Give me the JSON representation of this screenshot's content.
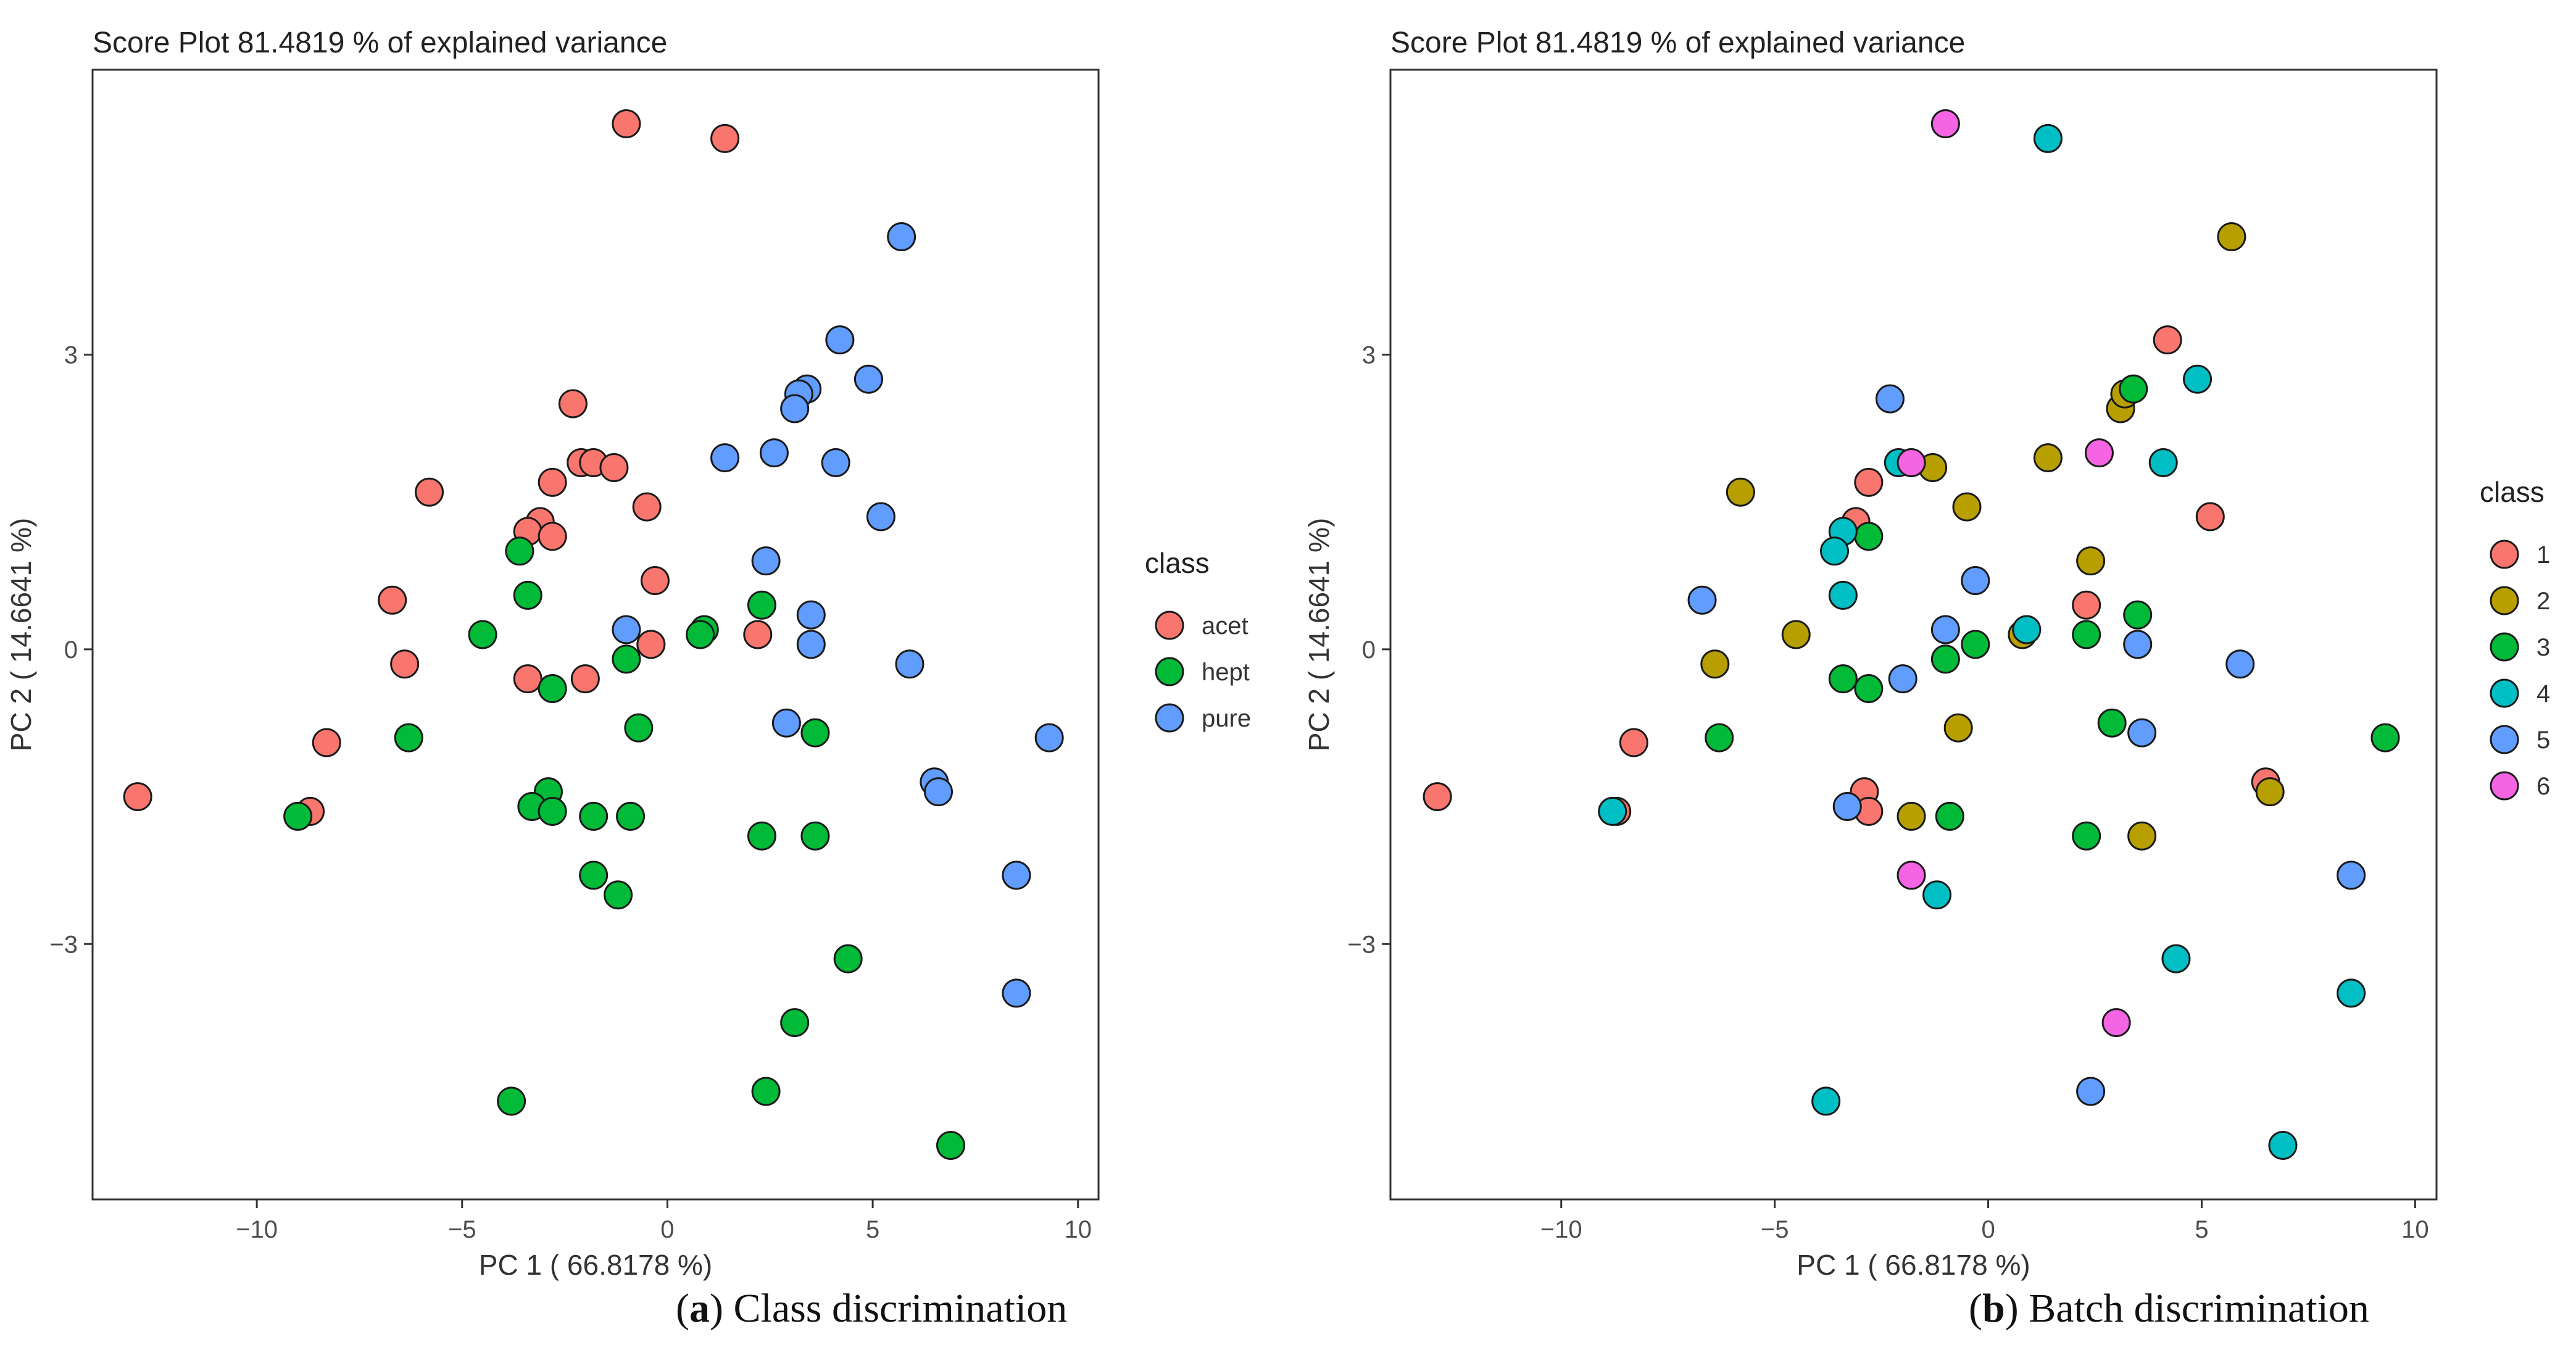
{
  "chart_data": [
    {
      "type": "scatter",
      "title": "Score Plot  81.4819 % of explained variance",
      "xlabel": "PC 1  ( 66.8178 %)",
      "ylabel": "PC 2  ( 14.6641 %)",
      "xlim": [
        -14,
        10.5
      ],
      "ylim": [
        -5.6,
        5.9
      ],
      "xticks": [
        -10,
        -5,
        0,
        5,
        10
      ],
      "xtick_labels": [
        "−10",
        "−5",
        "0",
        "5",
        "10"
      ],
      "yticks": [
        -3,
        0,
        3
      ],
      "ytick_labels": [
        "−3",
        "0",
        "3"
      ],
      "grid": false,
      "legend": {
        "title": "class",
        "position": "right"
      },
      "series": [
        {
          "name": "acet",
          "color": "#F8766D",
          "points": [
            [
              -1.0,
              5.35
            ],
            [
              1.4,
              5.2
            ],
            [
              -2.3,
              2.5
            ],
            [
              -2.1,
              1.9
            ],
            [
              -1.8,
              1.9
            ],
            [
              -1.3,
              1.85
            ],
            [
              -2.8,
              1.7
            ],
            [
              -5.8,
              1.6
            ],
            [
              -0.5,
              1.45
            ],
            [
              -3.1,
              1.3
            ],
            [
              -3.4,
              1.2
            ],
            [
              -2.8,
              1.15
            ],
            [
              -0.3,
              0.7
            ],
            [
              -6.7,
              0.5
            ],
            [
              -6.4,
              -0.15
            ],
            [
              2.2,
              0.15
            ],
            [
              -0.4,
              0.05
            ],
            [
              -3.4,
              -0.3
            ],
            [
              -2.0,
              -0.3
            ],
            [
              -8.3,
              -0.95
            ],
            [
              -8.7,
              -1.65
            ],
            [
              -12.9,
              -1.5
            ]
          ]
        },
        {
          "name": "hept",
          "color": "#00BA38",
          "points": [
            [
              -3.6,
              1.0
            ],
            [
              -3.4,
              0.55
            ],
            [
              2.3,
              0.45
            ],
            [
              0.9,
              0.2
            ],
            [
              0.8,
              0.15
            ],
            [
              -4.5,
              0.15
            ],
            [
              -1.0,
              -0.1
            ],
            [
              -2.8,
              -0.4
            ],
            [
              -0.7,
              -0.8
            ],
            [
              3.6,
              -0.85
            ],
            [
              -6.3,
              -0.9
            ],
            [
              -2.9,
              -1.45
            ],
            [
              -3.3,
              -1.6
            ],
            [
              -2.8,
              -1.65
            ],
            [
              -1.8,
              -1.7
            ],
            [
              -0.9,
              -1.7
            ],
            [
              -9.0,
              -1.7
            ],
            [
              2.3,
              -1.9
            ],
            [
              3.6,
              -1.9
            ],
            [
              -1.8,
              -2.3
            ],
            [
              -1.2,
              -2.5
            ],
            [
              4.4,
              -3.15
            ],
            [
              3.1,
              -3.8
            ],
            [
              2.4,
              -4.5
            ],
            [
              -3.8,
              -4.6
            ],
            [
              6.9,
              -5.05
            ]
          ]
        },
        {
          "name": "pure",
          "color": "#619CFF",
          "points": [
            [
              5.7,
              4.2
            ],
            [
              4.2,
              3.15
            ],
            [
              4.9,
              2.75
            ],
            [
              3.4,
              2.65
            ],
            [
              3.2,
              2.6
            ],
            [
              3.1,
              2.45
            ],
            [
              2.6,
              2.0
            ],
            [
              1.4,
              1.95
            ],
            [
              4.1,
              1.9
            ],
            [
              5.2,
              1.35
            ],
            [
              2.4,
              0.9
            ],
            [
              3.5,
              0.35
            ],
            [
              -1.0,
              0.2
            ],
            [
              3.5,
              0.05
            ],
            [
              5.9,
              -0.15
            ],
            [
              2.9,
              -0.75
            ],
            [
              9.3,
              -0.9
            ],
            [
              6.5,
              -1.35
            ],
            [
              6.6,
              -1.45
            ],
            [
              8.5,
              -2.3
            ],
            [
              8.5,
              -3.5
            ]
          ]
        }
      ],
      "caption": {
        "letter": "a",
        "text": " Class discrimination"
      }
    },
    {
      "type": "scatter",
      "title": "Score Plot  81.4819 % of explained variance",
      "xlabel": "PC 1  ( 66.8178 %)",
      "ylabel": "PC 2  ( 14.6641 %)",
      "xlim": [
        -14,
        10.5
      ],
      "ylim": [
        -5.6,
        5.9
      ],
      "xticks": [
        -10,
        -5,
        0,
        5,
        10
      ],
      "xtick_labels": [
        "−10",
        "−5",
        "0",
        "5",
        "10"
      ],
      "yticks": [
        -3,
        0,
        3
      ],
      "ytick_labels": [
        "−3",
        "0",
        "3"
      ],
      "grid": false,
      "legend": {
        "title": "class",
        "position": "right"
      },
      "series": [
        {
          "name": "1",
          "color": "#F8766D",
          "points": [
            [
              4.2,
              3.15
            ],
            [
              -2.8,
              1.7
            ],
            [
              -3.1,
              1.3
            ],
            [
              2.3,
              0.45
            ],
            [
              5.2,
              1.35
            ],
            [
              -8.3,
              -0.95
            ],
            [
              -8.7,
              -1.65
            ],
            [
              -12.9,
              -1.5
            ],
            [
              -2.9,
              -1.45
            ],
            [
              -2.8,
              -1.65
            ],
            [
              6.5,
              -1.35
            ]
          ]
        },
        {
          "name": "2",
          "color": "#B79F00",
          "points": [
            [
              5.7,
              4.2
            ],
            [
              3.1,
              2.45
            ],
            [
              3.2,
              2.6
            ],
            [
              1.4,
              1.95
            ],
            [
              -1.3,
              1.85
            ],
            [
              -5.8,
              1.6
            ],
            [
              -0.5,
              1.45
            ],
            [
              2.4,
              0.9
            ],
            [
              -4.5,
              0.15
            ],
            [
              0.8,
              0.15
            ],
            [
              -6.4,
              -0.15
            ],
            [
              -0.7,
              -0.8
            ],
            [
              -1.8,
              -1.7
            ],
            [
              3.6,
              -1.9
            ],
            [
              6.6,
              -1.45
            ]
          ]
        },
        {
          "name": "3",
          "color": "#00BA38",
          "points": [
            [
              3.4,
              2.65
            ],
            [
              -2.8,
              1.15
            ],
            [
              2.3,
              0.15
            ],
            [
              3.5,
              0.35
            ],
            [
              -0.3,
              0.05
            ],
            [
              -1.0,
              -0.1
            ],
            [
              -3.4,
              -0.3
            ],
            [
              -2.8,
              -0.4
            ],
            [
              2.9,
              -0.75
            ],
            [
              -6.3,
              -0.9
            ],
            [
              9.3,
              -0.9
            ],
            [
              -0.9,
              -1.7
            ],
            [
              2.3,
              -1.9
            ]
          ]
        },
        {
          "name": "4",
          "color": "#00BFC4",
          "points": [
            [
              1.4,
              5.2
            ],
            [
              4.9,
              2.75
            ],
            [
              4.1,
              1.9
            ],
            [
              -2.1,
              1.9
            ],
            [
              -3.4,
              1.2
            ],
            [
              -3.6,
              1.0
            ],
            [
              -3.4,
              0.55
            ],
            [
              0.9,
              0.2
            ],
            [
              -8.8,
              -1.65
            ],
            [
              -1.2,
              -2.5
            ],
            [
              4.4,
              -3.15
            ],
            [
              8.5,
              -3.5
            ],
            [
              -3.8,
              -4.6
            ],
            [
              6.9,
              -5.05
            ]
          ]
        },
        {
          "name": "5",
          "color": "#619CFF",
          "points": [
            [
              -2.3,
              2.55
            ],
            [
              -6.7,
              0.5
            ],
            [
              -1.0,
              0.2
            ],
            [
              -0.3,
              0.7
            ],
            [
              -2.0,
              -0.3
            ],
            [
              3.5,
              0.05
            ],
            [
              5.9,
              -0.15
            ],
            [
              3.6,
              -0.85
            ],
            [
              -3.3,
              -1.6
            ],
            [
              8.5,
              -2.3
            ],
            [
              2.4,
              -4.5
            ]
          ]
        },
        {
          "name": "6",
          "color": "#F564E3",
          "points": [
            [
              -1.0,
              5.35
            ],
            [
              -1.8,
              1.9
            ],
            [
              2.6,
              2.0
            ],
            [
              -1.8,
              -2.3
            ],
            [
              3.0,
              -3.8
            ]
          ]
        }
      ],
      "caption": {
        "letter": "b",
        "text": " Batch discrimination"
      }
    }
  ]
}
